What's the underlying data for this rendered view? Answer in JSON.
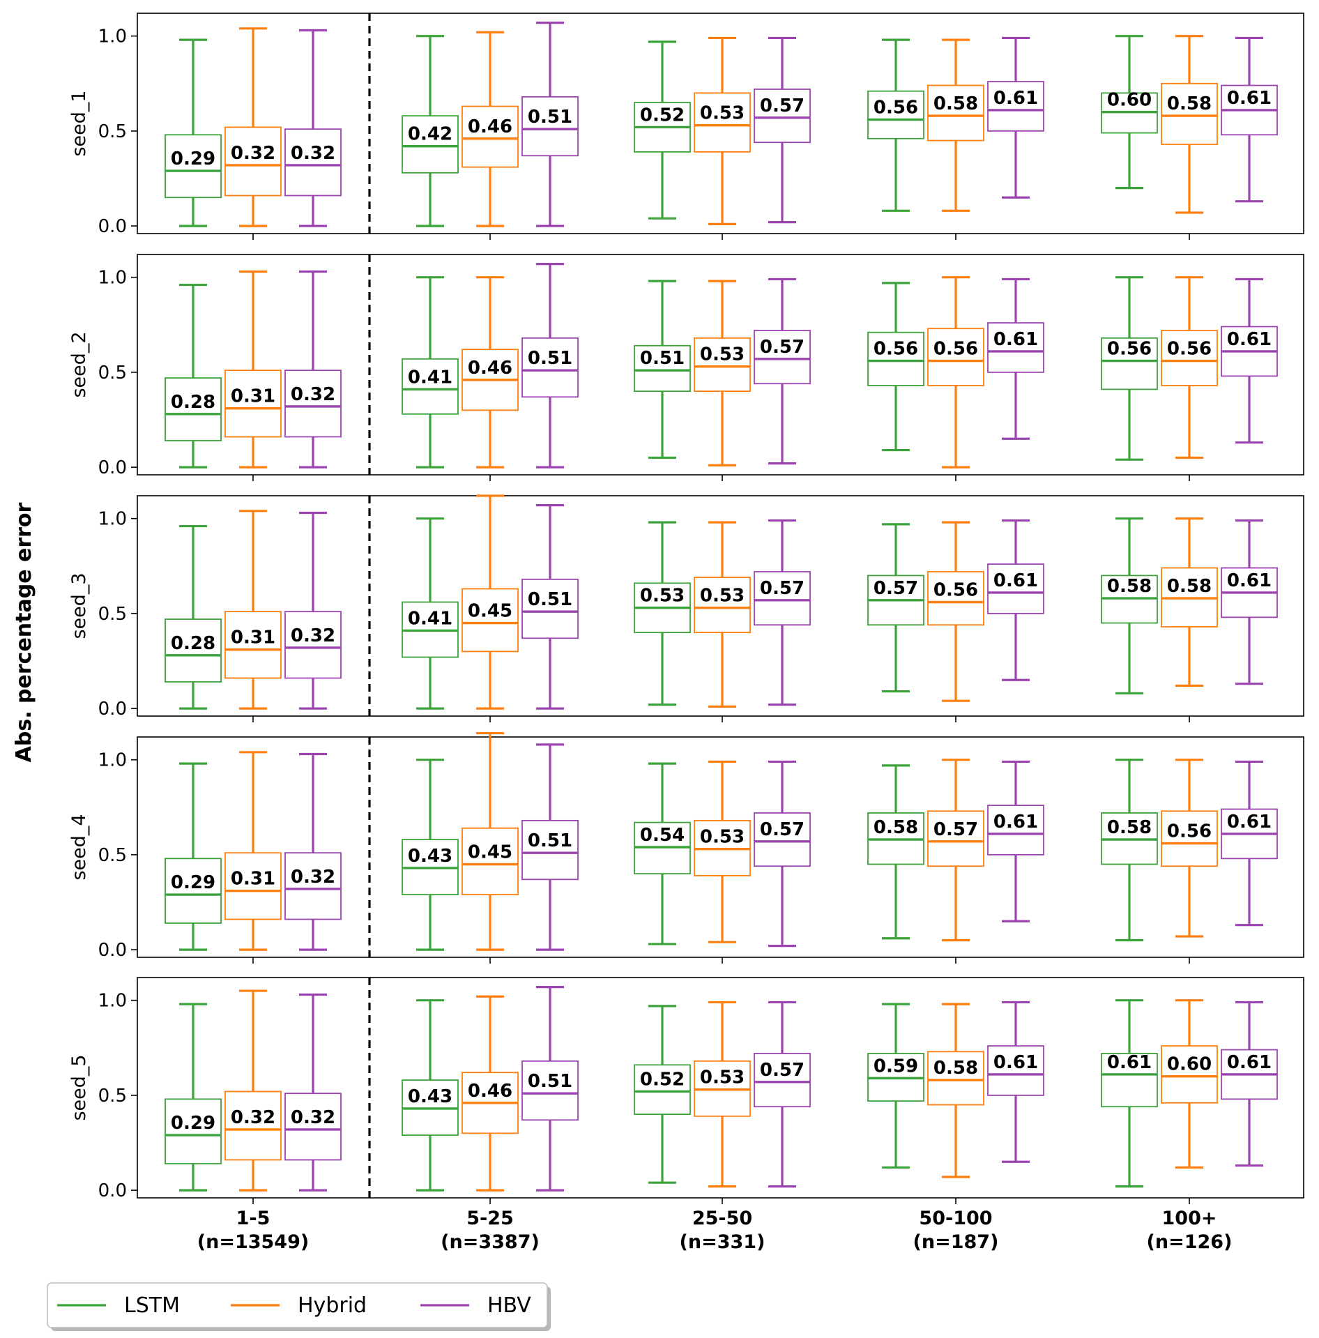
{
  "chart_data": {
    "type": "boxplot",
    "ylabel": "Abs. percentage error",
    "ylim": [
      -0.04,
      1.12
    ],
    "yticks": [
      {
        "value": 0.0,
        "label": "0.0"
      },
      {
        "value": 0.5,
        "label": "0.5"
      },
      {
        "value": 1.0,
        "label": "1.0"
      }
    ],
    "categories": [
      {
        "label": "1-5",
        "count": "(n=13549)"
      },
      {
        "label": "5-25",
        "count": "(n=3387)"
      },
      {
        "label": "25-50",
        "count": "(n=331)"
      },
      {
        "label": "50-100",
        "count": "(n=187)"
      },
      {
        "label": "100+",
        "count": "(n=126)"
      }
    ],
    "series": [
      {
        "name": "LSTM",
        "color": "#3ba33a"
      },
      {
        "name": "Hybrid",
        "color": "#ff7f0e"
      },
      {
        "name": "HBV",
        "color": "#9b44b0"
      }
    ],
    "divider_after_category": 0,
    "legend": {
      "position": "bottom-left",
      "items": [
        "LSTM",
        "Hybrid",
        "HBV"
      ]
    },
    "panels": [
      {
        "name": "seed_1",
        "boxes": [
          [
            [
              0.0,
              0.15,
              0.29,
              0.48,
              0.98
            ],
            [
              0.0,
              0.16,
              0.32,
              0.52,
              1.04
            ],
            [
              0.0,
              0.16,
              0.32,
              0.51,
              1.03
            ]
          ],
          [
            [
              0.0,
              0.28,
              0.42,
              0.58,
              1.0
            ],
            [
              0.0,
              0.31,
              0.46,
              0.63,
              1.02
            ],
            [
              0.0,
              0.37,
              0.51,
              0.68,
              1.07
            ]
          ],
          [
            [
              0.04,
              0.39,
              0.52,
              0.65,
              0.97
            ],
            [
              0.01,
              0.39,
              0.53,
              0.7,
              0.99
            ],
            [
              0.02,
              0.44,
              0.57,
              0.72,
              0.99
            ]
          ],
          [
            [
              0.08,
              0.46,
              0.56,
              0.71,
              0.98
            ],
            [
              0.08,
              0.45,
              0.58,
              0.74,
              0.98
            ],
            [
              0.15,
              0.5,
              0.61,
              0.76,
              0.99
            ]
          ],
          [
            [
              0.2,
              0.49,
              0.6,
              0.7,
              1.0
            ],
            [
              0.07,
              0.43,
              0.58,
              0.75,
              1.0
            ],
            [
              0.13,
              0.48,
              0.61,
              0.74,
              0.99
            ]
          ]
        ],
        "labels": [
          [
            "0.29",
            "0.32",
            "0.32"
          ],
          [
            "0.42",
            "0.46",
            "0.51"
          ],
          [
            "0.52",
            "0.53",
            "0.57"
          ],
          [
            "0.56",
            "0.58",
            "0.61"
          ],
          [
            "0.60",
            "0.58",
            "0.61"
          ]
        ]
      },
      {
        "name": "seed_2",
        "boxes": [
          [
            [
              0.0,
              0.14,
              0.28,
              0.47,
              0.96
            ],
            [
              0.0,
              0.16,
              0.31,
              0.51,
              1.03
            ],
            [
              0.0,
              0.16,
              0.32,
              0.51,
              1.03
            ]
          ],
          [
            [
              0.0,
              0.28,
              0.41,
              0.57,
              1.0
            ],
            [
              0.0,
              0.3,
              0.46,
              0.62,
              1.0
            ],
            [
              0.0,
              0.37,
              0.51,
              0.68,
              1.07
            ]
          ],
          [
            [
              0.05,
              0.4,
              0.51,
              0.64,
              0.98
            ],
            [
              0.01,
              0.4,
              0.53,
              0.68,
              0.98
            ],
            [
              0.02,
              0.44,
              0.57,
              0.72,
              0.99
            ]
          ],
          [
            [
              0.09,
              0.43,
              0.56,
              0.71,
              0.97
            ],
            [
              0.0,
              0.43,
              0.56,
              0.73,
              1.0
            ],
            [
              0.15,
              0.5,
              0.61,
              0.76,
              0.99
            ]
          ],
          [
            [
              0.04,
              0.41,
              0.56,
              0.68,
              1.0
            ],
            [
              0.05,
              0.43,
              0.56,
              0.72,
              1.0
            ],
            [
              0.13,
              0.48,
              0.61,
              0.74,
              0.99
            ]
          ]
        ],
        "labels": [
          [
            "0.28",
            "0.31",
            "0.32"
          ],
          [
            "0.41",
            "0.46",
            "0.51"
          ],
          [
            "0.51",
            "0.53",
            "0.57"
          ],
          [
            "0.56",
            "0.56",
            "0.61"
          ],
          [
            "0.56",
            "0.56",
            "0.61"
          ]
        ]
      },
      {
        "name": "seed_3",
        "boxes": [
          [
            [
              0.0,
              0.14,
              0.28,
              0.47,
              0.96
            ],
            [
              0.0,
              0.16,
              0.31,
              0.51,
              1.04
            ],
            [
              0.0,
              0.16,
              0.32,
              0.51,
              1.03
            ]
          ],
          [
            [
              0.0,
              0.27,
              0.41,
              0.56,
              1.0
            ],
            [
              0.0,
              0.3,
              0.45,
              0.63,
              1.12
            ],
            [
              0.0,
              0.37,
              0.51,
              0.68,
              1.07
            ]
          ],
          [
            [
              0.02,
              0.4,
              0.53,
              0.66,
              0.98
            ],
            [
              0.01,
              0.4,
              0.53,
              0.69,
              0.98
            ],
            [
              0.02,
              0.44,
              0.57,
              0.72,
              0.99
            ]
          ],
          [
            [
              0.09,
              0.44,
              0.57,
              0.7,
              0.97
            ],
            [
              0.04,
              0.44,
              0.56,
              0.72,
              0.98
            ],
            [
              0.15,
              0.5,
              0.61,
              0.76,
              0.99
            ]
          ],
          [
            [
              0.08,
              0.45,
              0.58,
              0.7,
              1.0
            ],
            [
              0.12,
              0.43,
              0.58,
              0.74,
              1.0
            ],
            [
              0.13,
              0.48,
              0.61,
              0.74,
              0.99
            ]
          ]
        ],
        "labels": [
          [
            "0.28",
            "0.31",
            "0.32"
          ],
          [
            "0.41",
            "0.45",
            "0.51"
          ],
          [
            "0.53",
            "0.53",
            "0.57"
          ],
          [
            "0.57",
            "0.56",
            "0.61"
          ],
          [
            "0.58",
            "0.58",
            "0.61"
          ]
        ]
      },
      {
        "name": "seed_4",
        "boxes": [
          [
            [
              0.0,
              0.14,
              0.29,
              0.48,
              0.98
            ],
            [
              0.0,
              0.16,
              0.31,
              0.51,
              1.04
            ],
            [
              0.0,
              0.16,
              0.32,
              0.51,
              1.03
            ]
          ],
          [
            [
              0.0,
              0.29,
              0.43,
              0.58,
              1.0
            ],
            [
              0.0,
              0.29,
              0.45,
              0.64,
              1.14
            ],
            [
              0.0,
              0.37,
              0.51,
              0.68,
              1.08
            ]
          ],
          [
            [
              0.03,
              0.4,
              0.54,
              0.67,
              0.98
            ],
            [
              0.04,
              0.39,
              0.53,
              0.68,
              0.99
            ],
            [
              0.02,
              0.44,
              0.57,
              0.72,
              0.99
            ]
          ],
          [
            [
              0.06,
              0.45,
              0.58,
              0.72,
              0.97
            ],
            [
              0.05,
              0.44,
              0.57,
              0.73,
              1.0
            ],
            [
              0.15,
              0.5,
              0.61,
              0.76,
              0.99
            ]
          ],
          [
            [
              0.05,
              0.45,
              0.58,
              0.72,
              1.0
            ],
            [
              0.07,
              0.44,
              0.56,
              0.73,
              1.0
            ],
            [
              0.13,
              0.48,
              0.61,
              0.74,
              0.99
            ]
          ]
        ],
        "labels": [
          [
            "0.29",
            "0.31",
            "0.32"
          ],
          [
            "0.43",
            "0.45",
            "0.51"
          ],
          [
            "0.54",
            "0.53",
            "0.57"
          ],
          [
            "0.58",
            "0.57",
            "0.61"
          ],
          [
            "0.58",
            "0.56",
            "0.61"
          ]
        ]
      },
      {
        "name": "seed_5",
        "boxes": [
          [
            [
              0.0,
              0.14,
              0.29,
              0.48,
              0.98
            ],
            [
              0.0,
              0.16,
              0.32,
              0.52,
              1.05
            ],
            [
              0.0,
              0.16,
              0.32,
              0.51,
              1.03
            ]
          ],
          [
            [
              0.0,
              0.29,
              0.43,
              0.58,
              1.0
            ],
            [
              0.0,
              0.3,
              0.46,
              0.62,
              1.02
            ],
            [
              0.0,
              0.37,
              0.51,
              0.68,
              1.07
            ]
          ],
          [
            [
              0.04,
              0.4,
              0.52,
              0.66,
              0.97
            ],
            [
              0.02,
              0.39,
              0.53,
              0.68,
              0.99
            ],
            [
              0.02,
              0.44,
              0.57,
              0.72,
              0.99
            ]
          ],
          [
            [
              0.12,
              0.47,
              0.59,
              0.72,
              0.98
            ],
            [
              0.07,
              0.45,
              0.58,
              0.73,
              0.98
            ],
            [
              0.15,
              0.5,
              0.61,
              0.76,
              0.99
            ]
          ],
          [
            [
              0.02,
              0.44,
              0.61,
              0.72,
              1.0
            ],
            [
              0.12,
              0.46,
              0.6,
              0.76,
              1.0
            ],
            [
              0.13,
              0.48,
              0.61,
              0.74,
              0.99
            ]
          ]
        ],
        "labels": [
          [
            "0.29",
            "0.32",
            "0.32"
          ],
          [
            "0.43",
            "0.46",
            "0.51"
          ],
          [
            "0.52",
            "0.53",
            "0.57"
          ],
          [
            "0.59",
            "0.58",
            "0.61"
          ],
          [
            "0.61",
            "0.60",
            "0.61"
          ]
        ]
      }
    ]
  }
}
